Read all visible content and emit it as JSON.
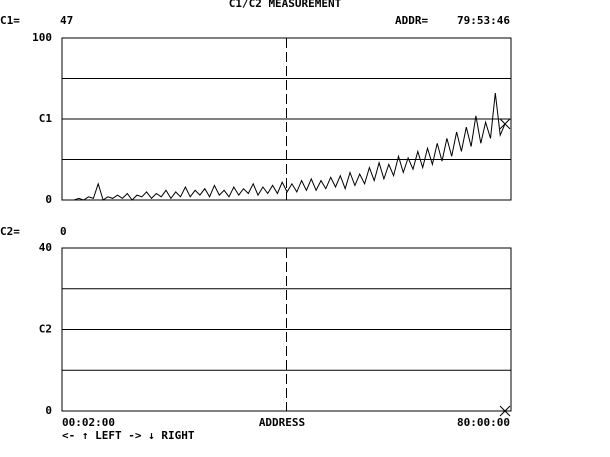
{
  "header": {
    "title": "C1/C2 MEASUREMENT",
    "addr_label": "ADDR=",
    "addr_value": "79:53:46"
  },
  "chart_data": [
    {
      "type": "line",
      "readout_label": "C1=",
      "readout": 47,
      "color": "#000000",
      "ylim": [
        0,
        100
      ],
      "yticks": [
        0,
        {
          "value": 25,
          "label": null
        },
        {
          "value": 50,
          "label": "C1"
        },
        {
          "value": 75,
          "label": null
        },
        100
      ],
      "values": [
        0,
        1,
        0,
        2,
        1,
        10,
        0,
        2,
        1,
        3,
        1,
        4,
        0,
        3,
        2,
        5,
        1,
        4,
        2,
        6,
        1,
        5,
        2,
        8,
        2,
        6,
        3,
        7,
        2,
        9,
        3,
        6,
        2,
        8,
        3,
        7,
        4,
        10,
        3,
        8,
        4,
        9,
        4,
        11,
        5,
        10,
        5,
        12,
        6,
        13,
        6,
        12,
        7,
        14,
        8,
        15,
        7,
        17,
        9,
        16,
        10,
        20,
        12,
        23,
        13,
        22,
        15,
        27,
        17,
        26,
        19,
        30,
        20,
        32,
        22,
        35,
        24,
        38,
        27,
        42,
        30,
        45,
        33,
        52,
        35,
        48,
        38,
        66,
        40,
        47
      ]
    },
    {
      "type": "line",
      "readout_label": "C2=",
      "readout": 0,
      "color": "#000000",
      "ylim": [
        0,
        40
      ],
      "yticks": [
        0,
        {
          "value": 10,
          "label": null
        },
        {
          "value": 20,
          "label": "C2"
        },
        {
          "value": 30,
          "label": null
        },
        40
      ]
    }
  ],
  "x_axis": {
    "start": "00:02:00",
    "label": "ADDRESS",
    "end": "80:00:00"
  },
  "footer": "<- ↑ LEFT  -> ↓ RIGHT"
}
